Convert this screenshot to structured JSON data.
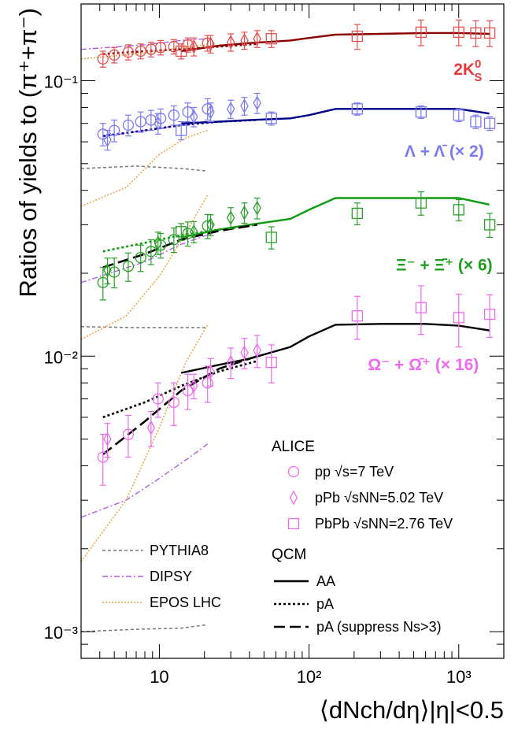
{
  "chart_data": {
    "type": "scatter",
    "title": "",
    "ylabel": "Ratios of yields to (π⁺+π⁻)",
    "xlabel": "⟨dNch/dη⟩|η|<0.5",
    "xscale": "log",
    "yscale": "log",
    "xlim": [
      3,
      2000
    ],
    "ylim": [
      0.0008,
      0.19
    ],
    "x_ticks": [
      {
        "value": 10,
        "label": "10"
      },
      {
        "value": 100,
        "label": "10²"
      },
      {
        "value": 1000,
        "label": "10³"
      }
    ],
    "y_ticks": [
      {
        "value": 0.001,
        "label": "10⁻³"
      },
      {
        "value": 0.01,
        "label": "10⁻²"
      },
      {
        "value": 0.1,
        "label": "10⁻¹"
      }
    ],
    "series_labels": [
      {
        "text": "2K",
        "sup": "0",
        "sub": "S",
        "tail": "",
        "color": "#e8393f",
        "x": 1150,
        "y": 0.105
      },
      {
        "text": "Λ + Λ̄",
        "sup": "",
        "sub": "",
        "tail": " (× 2)",
        "color": "#7b7bf0",
        "x": 800,
        "y": 0.053
      },
      {
        "text": "Ξ⁻ + Ξ̄⁺",
        "sup": "",
        "sub": "",
        "tail": " (× 6)",
        "color": "#1f9e1f",
        "x": 800,
        "y": 0.0205
      },
      {
        "text": "Ω⁻ + Ω̄⁺",
        "sup": "",
        "sub": "",
        "tail": " (× 16)",
        "color": "#ee6bee",
        "x": 580,
        "y": 0.0089
      }
    ],
    "colors": {
      "k0s_data": "#e25050",
      "k0s_line": "#8b0000",
      "lambda_data": "#7b7bf0",
      "lambda_line": "#00008b",
      "xi_data": "#2aa02a",
      "xi_line": "#0f9a0f",
      "omega_data": "#ee6bee",
      "qcm_aa": "#000000",
      "pythia": "#777777",
      "dipsy": "#b05ce0",
      "epos": "#f0a040"
    },
    "measurements": {
      "k0s": {
        "pp": [
          [
            4.2,
            0.12,
            0.008
          ],
          [
            5.0,
            0.124,
            0.008
          ],
          [
            6.2,
            0.127,
            0.008
          ],
          [
            7.5,
            0.128,
            0.008
          ],
          [
            8.8,
            0.13,
            0.008
          ],
          [
            10.2,
            0.132,
            0.008
          ],
          [
            12.5,
            0.133,
            0.008
          ],
          [
            15.5,
            0.135,
            0.008
          ],
          [
            21.0,
            0.137,
            0.009
          ]
        ],
        "pPb": [
          [
            17,
            0.133,
            0.01
          ],
          [
            22,
            0.136,
            0.01
          ],
          [
            30,
            0.138,
            0.01
          ],
          [
            37,
            0.14,
            0.01
          ],
          [
            45,
            0.142,
            0.01
          ]
        ],
        "PbPb": [
          [
            14,
            0.128,
            0.008
          ],
          [
            56,
            0.142,
            0.01
          ],
          [
            210,
            0.145,
            0.015
          ],
          [
            560,
            0.15,
            0.016
          ],
          [
            1000,
            0.15,
            0.016
          ],
          [
            1300,
            0.149,
            0.016
          ],
          [
            1610,
            0.149,
            0.016
          ]
        ]
      },
      "lambda": {
        "pp": [
          [
            4.2,
            0.064,
            0.006
          ],
          [
            5.0,
            0.066,
            0.006
          ],
          [
            6.2,
            0.069,
            0.006
          ],
          [
            7.5,
            0.071,
            0.006
          ],
          [
            8.8,
            0.072,
            0.006
          ],
          [
            10.2,
            0.073,
            0.006
          ],
          [
            12.5,
            0.075,
            0.006
          ],
          [
            15.5,
            0.077,
            0.006
          ],
          [
            21.0,
            0.079,
            0.007
          ]
        ],
        "pPb": [
          [
            4.5,
            0.061,
            0.005
          ],
          [
            9.8,
            0.07,
            0.006
          ],
          [
            17,
            0.074,
            0.006
          ],
          [
            22,
            0.077,
            0.006
          ],
          [
            30,
            0.079,
            0.006
          ],
          [
            37,
            0.081,
            0.006
          ],
          [
            45,
            0.083,
            0.007
          ]
        ],
        "PbPb": [
          [
            14,
            0.066,
            0.005
          ],
          [
            56,
            0.073,
            0.004
          ],
          [
            210,
            0.079,
            0.004
          ],
          [
            560,
            0.077,
            0.004
          ],
          [
            1000,
            0.075,
            0.004
          ],
          [
            1300,
            0.071,
            0.004
          ],
          [
            1610,
            0.07,
            0.004
          ]
        ]
      },
      "xi": {
        "pp": [
          [
            4.2,
            0.0185,
            0.0025
          ],
          [
            5.0,
            0.0202,
            0.0025
          ],
          [
            6.2,
            0.0212,
            0.0025
          ],
          [
            7.5,
            0.0228,
            0.0025
          ],
          [
            8.8,
            0.024,
            0.0025
          ],
          [
            10.2,
            0.0253,
            0.0026
          ],
          [
            12.5,
            0.0265,
            0.0027
          ],
          [
            15.5,
            0.0279,
            0.0028
          ],
          [
            21.0,
            0.0297,
            0.003
          ]
        ],
        "pPb": [
          [
            4.5,
            0.0205,
            0.0022
          ],
          [
            9.8,
            0.0258,
            0.0024
          ],
          [
            17,
            0.0283,
            0.0025
          ],
          [
            22,
            0.03,
            0.0026
          ],
          [
            30,
            0.0318,
            0.0028
          ],
          [
            37,
            0.0332,
            0.0028
          ],
          [
            45,
            0.0345,
            0.003
          ]
        ],
        "PbPb": [
          [
            14,
            0.0283,
            0.002
          ],
          [
            56,
            0.027,
            0.0025
          ],
          [
            210,
            0.033,
            0.003
          ],
          [
            560,
            0.036,
            0.0035
          ],
          [
            1000,
            0.034,
            0.003
          ],
          [
            1610,
            0.03,
            0.003
          ]
        ]
      },
      "omega": {
        "pp": [
          [
            4.2,
            0.0043,
            0.0009
          ],
          [
            6.2,
            0.0052,
            0.0009
          ],
          [
            9.8,
            0.007,
            0.001
          ],
          [
            12.5,
            0.0068,
            0.0012
          ],
          [
            15.5,
            0.0075,
            0.0011
          ],
          [
            21.0,
            0.008,
            0.0012
          ]
        ],
        "pPb": [
          [
            4.5,
            0.005,
            0.0007
          ],
          [
            8.8,
            0.0055,
            0.0008
          ],
          [
            17,
            0.0078,
            0.0008
          ],
          [
            22,
            0.0088,
            0.001
          ],
          [
            30,
            0.0095,
            0.0012
          ],
          [
            37,
            0.0103,
            0.0013
          ],
          [
            45,
            0.0105,
            0.0014
          ]
        ],
        "PbPb": [
          [
            56,
            0.0095,
            0.0015
          ],
          [
            210,
            0.014,
            0.0025
          ],
          [
            560,
            0.015,
            0.003
          ],
          [
            1000,
            0.0138,
            0.003
          ],
          [
            1610,
            0.0142,
            0.0025
          ]
        ]
      }
    },
    "curves": {
      "k0s_AA": [
        [
          14,
          0.128
        ],
        [
          25,
          0.134
        ],
        [
          40,
          0.137
        ],
        [
          75,
          0.14
        ],
        [
          100,
          0.143
        ],
        [
          150,
          0.147
        ],
        [
          300,
          0.148
        ],
        [
          600,
          0.149
        ],
        [
          1000,
          0.149
        ],
        [
          1600,
          0.148
        ]
      ],
      "k0s_pA": [
        [
          4.2,
          0.125
        ],
        [
          8,
          0.128
        ],
        [
          14,
          0.13
        ],
        [
          25,
          0.133
        ],
        [
          45,
          0.136
        ]
      ],
      "lambda_AA": [
        [
          14,
          0.07
        ],
        [
          25,
          0.071
        ],
        [
          40,
          0.072
        ],
        [
          75,
          0.073
        ],
        [
          100,
          0.075
        ],
        [
          150,
          0.079
        ],
        [
          300,
          0.079
        ],
        [
          600,
          0.079
        ],
        [
          1000,
          0.079
        ],
        [
          1600,
          0.076
        ]
      ],
      "lambda_pA": [
        [
          4.2,
          0.063
        ],
        [
          8,
          0.066
        ],
        [
          14,
          0.069
        ],
        [
          25,
          0.071
        ],
        [
          45,
          0.072
        ]
      ],
      "xi_AA": [
        [
          14,
          0.027
        ],
        [
          25,
          0.0288
        ],
        [
          40,
          0.03
        ],
        [
          75,
          0.0315
        ],
        [
          100,
          0.034
        ],
        [
          150,
          0.0375
        ],
        [
          300,
          0.0375
        ],
        [
          600,
          0.0375
        ],
        [
          1000,
          0.0375
        ],
        [
          1600,
          0.0355
        ]
      ],
      "xi_pA": [
        [
          4.2,
          0.024
        ],
        [
          8,
          0.0258
        ],
        [
          14,
          0.0275
        ],
        [
          25,
          0.0288
        ],
        [
          45,
          0.03
        ]
      ],
      "xi_pA_sup": [
        [
          4.2,
          0.021
        ],
        [
          8,
          0.0235
        ],
        [
          14,
          0.0265
        ],
        [
          25,
          0.0285
        ],
        [
          45,
          0.03
        ]
      ],
      "omega_AA": [
        [
          14,
          0.0087
        ],
        [
          25,
          0.0093
        ],
        [
          40,
          0.0098
        ],
        [
          75,
          0.0108
        ],
        [
          100,
          0.0118
        ],
        [
          150,
          0.013
        ],
        [
          300,
          0.0131
        ],
        [
          600,
          0.0131
        ],
        [
          1000,
          0.0129
        ],
        [
          1600,
          0.0124
        ]
      ],
      "omega_pA": [
        [
          4.2,
          0.006
        ],
        [
          8,
          0.0068
        ],
        [
          14,
          0.0078
        ],
        [
          25,
          0.0088
        ],
        [
          45,
          0.0096
        ]
      ],
      "omega_pA_sup": [
        [
          4.2,
          0.0044
        ],
        [
          8,
          0.0058
        ],
        [
          14,
          0.0075
        ],
        [
          25,
          0.009
        ],
        [
          45,
          0.01
        ]
      ],
      "pythia_k0s": [
        [
          3,
          0.048
        ],
        [
          7,
          0.049
        ],
        [
          14,
          0.048
        ],
        [
          21,
          0.047
        ]
      ],
      "pythia_xi": [
        [
          3,
          0.0128
        ],
        [
          7,
          0.0127
        ],
        [
          14,
          0.0127
        ],
        [
          21,
          0.0127
        ]
      ],
      "pythia_omega": [
        [
          3,
          0.001
        ],
        [
          7,
          0.00102
        ],
        [
          14,
          0.00103
        ],
        [
          21,
          0.00106
        ]
      ],
      "dipsy_k0s": [
        [
          3,
          0.13
        ],
        [
          8,
          0.135
        ],
        [
          14,
          0.14
        ],
        [
          21,
          0.142
        ]
      ],
      "dipsy_lambda": [
        [
          4.5,
          0.063
        ],
        [
          8,
          0.066
        ],
        [
          14,
          0.069
        ],
        [
          21,
          0.071
        ]
      ],
      "dipsy_xi": [
        [
          3,
          0.0185
        ],
        [
          8,
          0.022
        ],
        [
          14,
          0.0255
        ],
        [
          25,
          0.0285
        ]
      ],
      "dipsy_omega": [
        [
          3,
          0.0026
        ],
        [
          6,
          0.003
        ],
        [
          10,
          0.0036
        ],
        [
          16,
          0.0043
        ],
        [
          21,
          0.0048
        ]
      ],
      "epos_k0s": [
        [
          3,
          0.12
        ],
        [
          8,
          0.126
        ],
        [
          14,
          0.132
        ],
        [
          21,
          0.135
        ]
      ],
      "epos_lambda": [
        [
          3,
          0.035
        ],
        [
          6,
          0.041
        ],
        [
          10,
          0.054
        ],
        [
          15,
          0.062
        ],
        [
          21,
          0.066
        ]
      ],
      "epos_xi": [
        [
          3,
          0.0115
        ],
        [
          6,
          0.014
        ],
        [
          10,
          0.0195
        ],
        [
          15,
          0.028
        ],
        [
          21,
          0.0385
        ]
      ],
      "epos_omega": [
        [
          3,
          0.0018
        ],
        [
          6,
          0.003
        ],
        [
          10,
          0.0055
        ],
        [
          15,
          0.0095
        ],
        [
          21,
          0.013
        ]
      ]
    },
    "legend_alice": {
      "head": "ALICE",
      "items": [
        {
          "marker": "circle",
          "label": "pp √s=7 TeV"
        },
        {
          "marker": "diamond",
          "label": "pPb √sNN=5.02 TeV"
        },
        {
          "marker": "square",
          "label": "PbPb √sNN=2.76 TeV"
        }
      ]
    },
    "legend_models": [
      {
        "label": "PYTHIA8",
        "style": "pythia"
      },
      {
        "label": "DIPSY",
        "style": "dipsy"
      },
      {
        "label": "EPOS LHC",
        "style": "epos"
      }
    ],
    "legend_qcm": {
      "head": "QCM",
      "items": [
        {
          "label": "AA",
          "style": "solid"
        },
        {
          "label": "pA",
          "style": "dotted"
        },
        {
          "label": "pA (suppress Ns>3)",
          "style": "dashed"
        }
      ]
    }
  }
}
